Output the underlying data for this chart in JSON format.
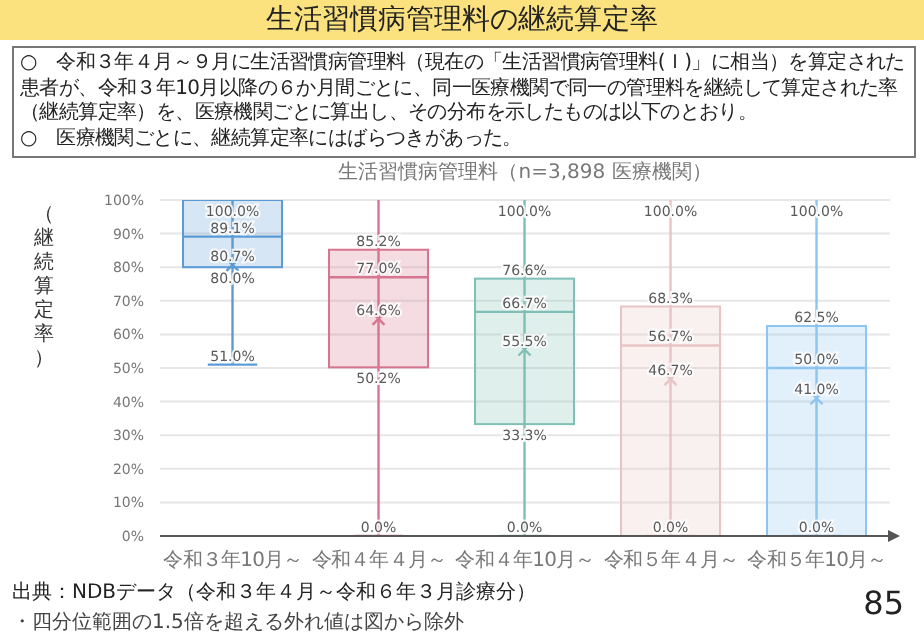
{
  "chart_data": {
    "type": "box",
    "title": "生活習慣病管理料の継続算定率",
    "subtitle": "生活習慣病管理料（n=3,898 医療機関）",
    "ylabel": "（継続算定率）",
    "categories": [
      "令和３年10月～",
      "令和４年４月～",
      "令和４年10月～",
      "令和５年４月～",
      "令和５年10月～"
    ],
    "boxes": [
      {
        "low": 51.0,
        "q1": 80.0,
        "median": 89.1,
        "q3": 100.0,
        "high": 100.0,
        "mean": 80.7
      },
      {
        "low": 0.0,
        "q1": 50.2,
        "median": 77.0,
        "q3": 85.2,
        "high": 100.0,
        "mean": 64.6
      },
      {
        "low": 0.0,
        "q1": 33.3,
        "median": 66.7,
        "q3": 76.6,
        "high": 100.0,
        "mean": 55.5
      },
      {
        "low": 0.0,
        "q1": 0.0,
        "median": 56.7,
        "q3": 68.3,
        "high": 100.0,
        "mean": 46.7
      },
      {
        "low": 0.0,
        "q1": 0.0,
        "median": 50.0,
        "q3": 62.5,
        "high": 100.0,
        "mean": 41.0
      }
    ],
    "value_labels": [
      [
        "100.0%",
        null,
        "89.1%",
        "80.7%",
        "80.0%",
        "51.0%"
      ],
      [
        null,
        "85.2%",
        "77.0%",
        "64.6%",
        "50.2%",
        "0.0%"
      ],
      [
        "100.0%",
        "76.6%",
        "66.7%",
        "55.5%",
        "33.3%",
        "0.0%"
      ],
      [
        "100.0%",
        "68.3%",
        "56.7%",
        "46.7%",
        null,
        "0.0%"
      ],
      [
        "100.0%",
        "62.5%",
        "50.0%",
        "41.0%",
        null,
        "0.0%"
      ]
    ],
    "colors": [
      "#5b9bd5",
      "#d6758f",
      "#7fbfb5",
      "#e8c4c4",
      "#8cc4f2"
    ],
    "ylim": [
      0,
      100
    ],
    "yticks": [
      {
        "value": 0,
        "label": "0%"
      },
      {
        "value": 10,
        "label": "10%"
      },
      {
        "value": 20,
        "label": "20%"
      },
      {
        "value": 30,
        "label": "30%"
      },
      {
        "value": 40,
        "label": "40%"
      },
      {
        "value": 50,
        "label": "50%"
      },
      {
        "value": 60,
        "label": "60%"
      },
      {
        "value": 70,
        "label": "70%"
      },
      {
        "value": 80,
        "label": "80%"
      },
      {
        "value": 90,
        "label": "90%"
      },
      {
        "value": 100,
        "label": "100%"
      }
    ],
    "grid": "y",
    "legend": false,
    "marker": "cross",
    "annotations": [
      "○　令和３年４月～９月に生活習慣病管理料（現在の「生活習慣病管理料(Ｉ)」に相当）を算定された患者が、令和３年10月以降の６か月間ごとに、同一医療機関で同一の管理料を継続して算定された率（継続算定率）を、医療機関ごとに算出し、その分布を示したものは以下のとおり。",
      "○　医療機関ごとに、継続算定率にはばらつきがあった。",
      "出典：NDBデータ（令和３年４月～令和６年３月診療分）",
      "・四分位範囲の1.5倍を超える外れ値は図から除外",
      "85"
    ]
  }
}
